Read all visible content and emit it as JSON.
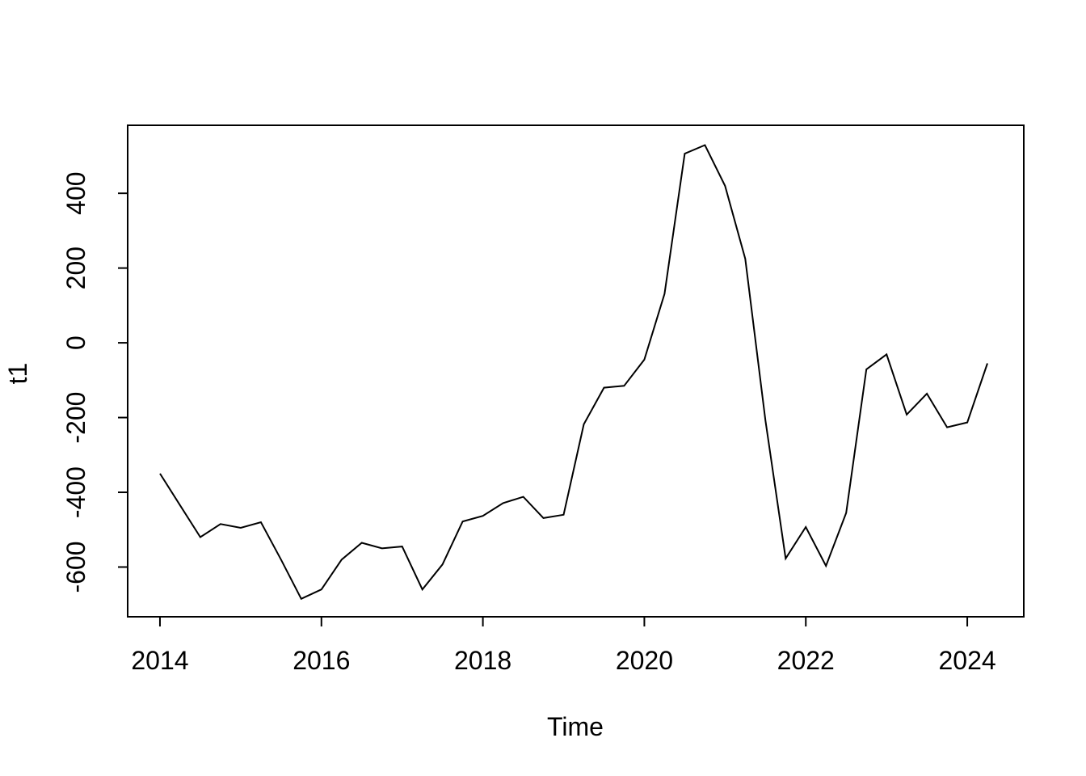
{
  "chart_data": {
    "type": "line",
    "title": "",
    "xlabel": "Time",
    "ylabel": "t1",
    "legend": null,
    "grid": false,
    "background": "#ffffff",
    "line_color": "#000000",
    "axis_color": "#000000",
    "x_ticks": [
      2014,
      2016,
      2018,
      2020,
      2022,
      2024
    ],
    "y_ticks": [
      -600,
      -400,
      -200,
      0,
      200,
      400
    ],
    "xlim": [
      2013.6,
      2024.7
    ],
    "ylim": [
      -733,
      582
    ],
    "x": [
      2014.0,
      2014.25,
      2014.5,
      2014.75,
      2015.0,
      2015.25,
      2015.5,
      2015.75,
      2016.0,
      2016.25,
      2016.5,
      2016.75,
      2017.0,
      2017.25,
      2017.5,
      2017.75,
      2018.0,
      2018.25,
      2018.5,
      2018.75,
      2019.0,
      2019.25,
      2019.5,
      2019.75,
      2020.0,
      2020.25,
      2020.5,
      2020.75,
      2021.0,
      2021.25,
      2021.5,
      2021.75,
      2022.0,
      2022.25,
      2022.5,
      2022.75,
      2023.0,
      2023.25,
      2023.5,
      2023.75,
      2024.0,
      2024.25
    ],
    "values": [
      -350,
      -435,
      -520,
      -485,
      -495,
      -480,
      -580,
      -685,
      -660,
      -580,
      -535,
      -550,
      -545,
      -660,
      -593,
      -478,
      -463,
      -429,
      -412,
      -469,
      -460,
      -218,
      -120,
      -115,
      -45,
      131,
      506,
      529,
      420,
      225,
      -208,
      -577,
      -493,
      -597,
      -455,
      -71,
      -31,
      -192,
      -136,
      -226,
      -213,
      -55
    ]
  }
}
